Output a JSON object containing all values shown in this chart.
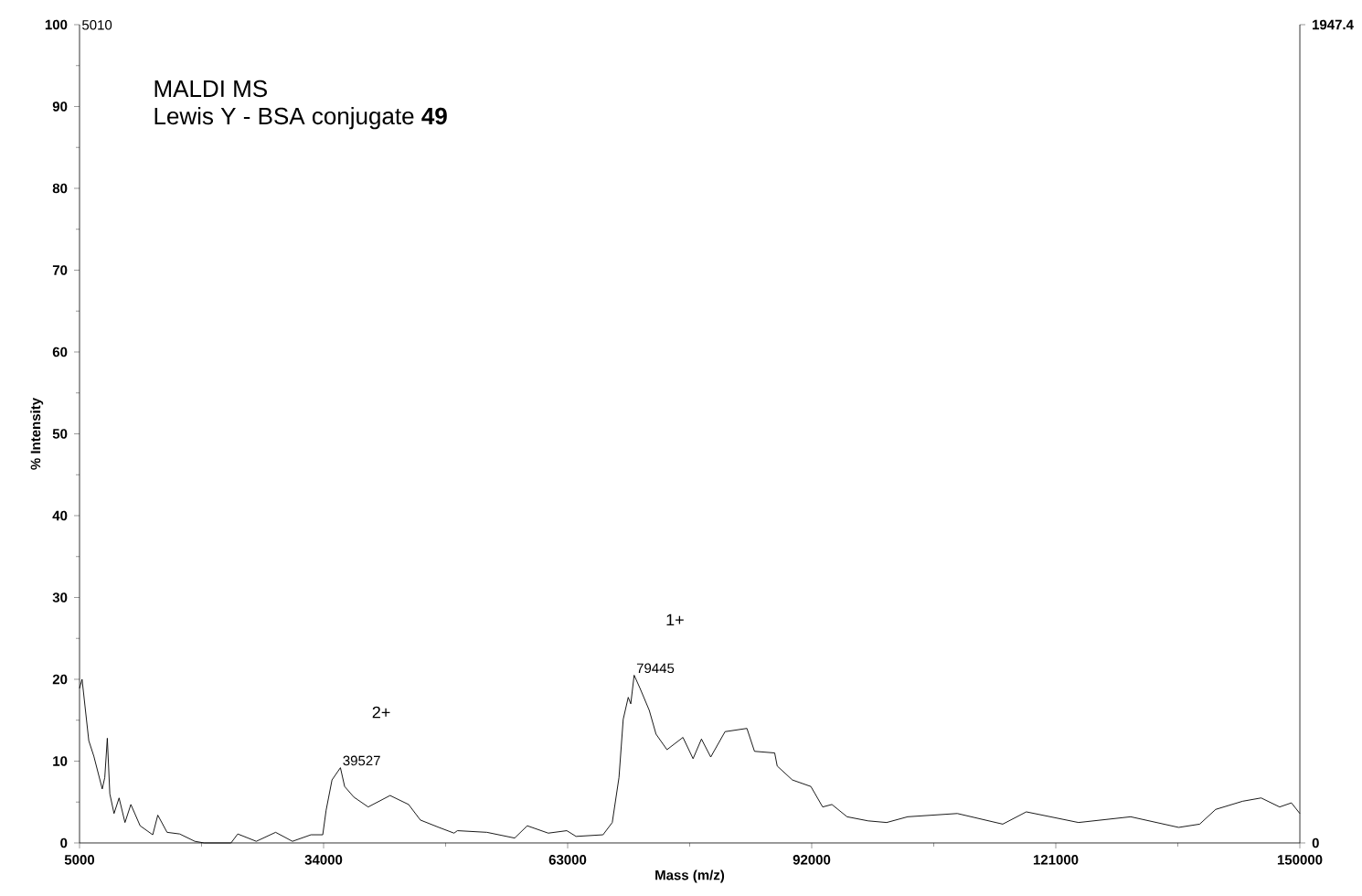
{
  "chart_data": {
    "type": "line",
    "title": "MALDI MS",
    "subtitle": "Lewis Y - BSA conjugate **49**",
    "xlabel": "Mass (m/z)",
    "ylabel": "% Intensity",
    "x": [
      5000,
      5300,
      6100,
      6700,
      7700,
      8000,
      8300,
      8600,
      9100,
      9700,
      10400,
      11100,
      12200,
      13700,
      14300,
      15400,
      16900,
      18700,
      19800,
      23000,
      23800,
      26000,
      28300,
      30300,
      32500,
      33900,
      34300,
      35000,
      36000,
      36500,
      37600,
      39300,
      41900,
      44100,
      45500,
      47700,
      49500,
      49900,
      53400,
      56700,
      58200,
      60700,
      62900,
      64000,
      67200,
      68300,
      69100,
      69600,
      70200,
      70500,
      70900,
      71600,
      72700,
      73500,
      74800,
      76700,
      77900,
      78900,
      80000,
      81700,
      84300,
      85200,
      87600,
      87900,
      89700,
      91900,
      93300,
      94400,
      96200,
      98700,
      100900,
      103400,
      109300,
      114700,
      117500,
      123700,
      129900,
      135600,
      138100,
      140000,
      143200,
      145400,
      147600,
      149000,
      150000
    ],
    "values": [
      18.9,
      20,
      12.5,
      10.6,
      6.6,
      8,
      12.8,
      6,
      3.6,
      5.5,
      2.5,
      4.7,
      2.1,
      1,
      3.4,
      1.3,
      1.1,
      0.2,
      0,
      0,
      1.1,
      0.2,
      1.3,
      0.2,
      1,
      1,
      4,
      7.7,
      9.2,
      6.9,
      5.6,
      4.4,
      5.8,
      4.7,
      2.8,
      1.9,
      1.2,
      1.5,
      1.3,
      0.6,
      2.1,
      1.2,
      1.5,
      0.8,
      1,
      2.5,
      8,
      15.1,
      17.8,
      17,
      20.5,
      18.9,
      16.2,
      13.3,
      11.4,
      12.9,
      10.3,
      12.7,
      10.5,
      13.6,
      14,
      11.2,
      11,
      9.4,
      7.7,
      6.9,
      4.4,
      4.7,
      3.2,
      2.7,
      2.5,
      3.2,
      3.6,
      2.3,
      3.8,
      2.5,
      3.2,
      1.9,
      2.3,
      4.1,
      5.1,
      5.5,
      4.4,
      4.9,
      3.6
    ],
    "color": "#000000",
    "xlim": [
      5000,
      150000
    ],
    "xticks": [
      5000,
      34000,
      63000,
      92000,
      121000,
      150000
    ],
    "ylim": [
      0,
      100
    ],
    "yticks": [
      0,
      10,
      20,
      30,
      40,
      50,
      60,
      70,
      80,
      90,
      100
    ],
    "y2lim": [
      0,
      1947.4
    ],
    "y2ticks": [
      0,
      1947.4
    ],
    "annotations": [
      "5010",
      "2+",
      {
        "text": "39527",
        "x": 36000,
        "y": 9.2
      },
      "1+",
      {
        "text": "79445",
        "x": 70900,
        "y": 20.5
      }
    ]
  }
}
